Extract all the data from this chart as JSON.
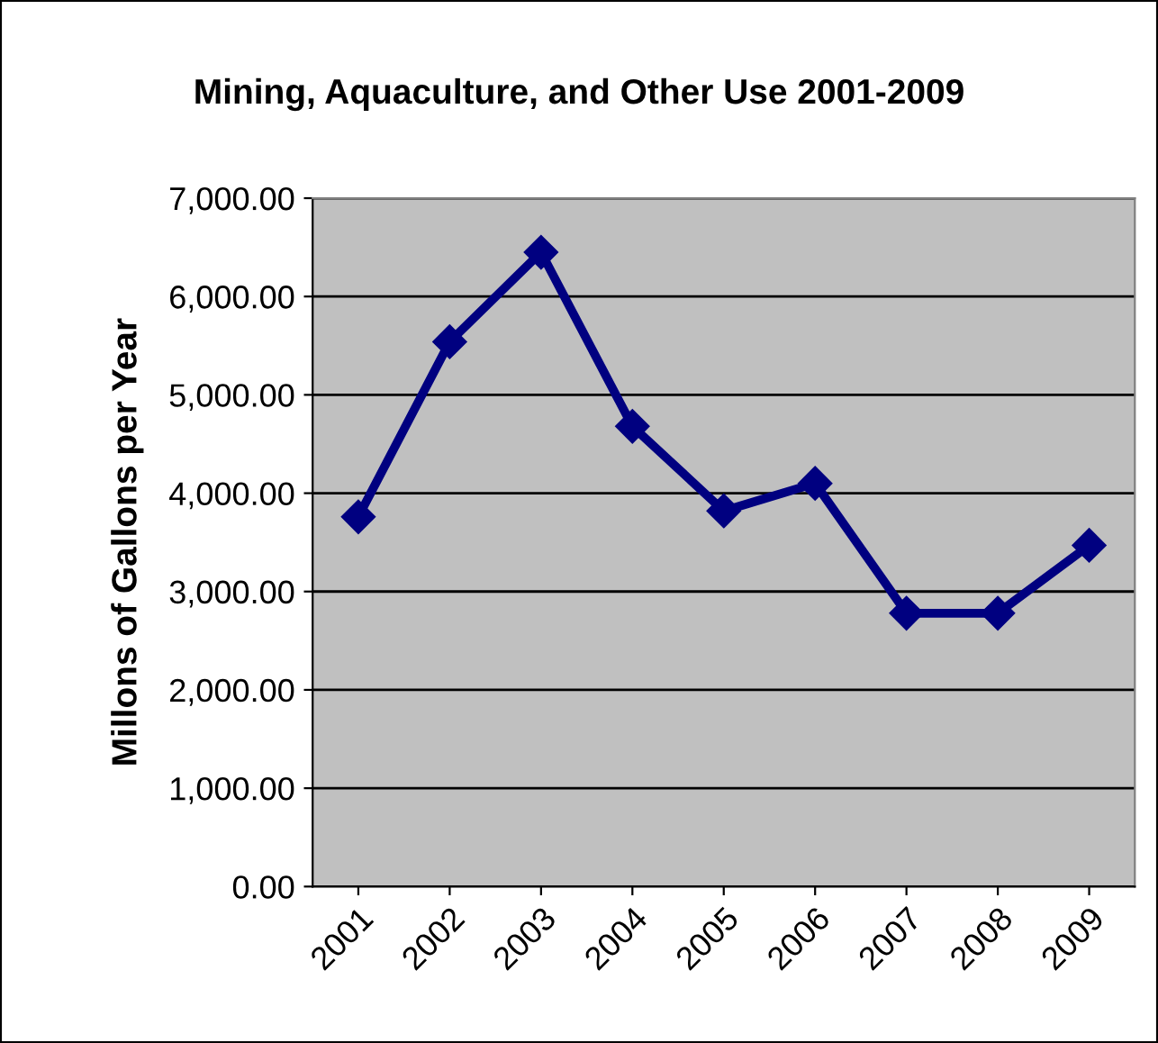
{
  "chart_data": {
    "type": "line",
    "title": "Mining, Aquaculture, and Other Use 2001-2009",
    "ylabel": "Millons of Gallons per Year",
    "categories": [
      "2001",
      "2002",
      "2003",
      "2004",
      "2005",
      "2006",
      "2007",
      "2008",
      "2009"
    ],
    "series": [
      {
        "color": "#000080",
        "values": [
          3760,
          5540,
          6450,
          4680,
          3820,
          4100,
          2780,
          2780,
          3470
        ]
      }
    ],
    "ylim": [
      0,
      7000
    ],
    "yticks": [
      {
        "value": 0,
        "label": "0.00"
      },
      {
        "value": 1000,
        "label": "1,000.00"
      },
      {
        "value": 2000,
        "label": "2,000.00"
      },
      {
        "value": 3000,
        "label": "3,000.00"
      },
      {
        "value": 4000,
        "label": "4,000.00"
      },
      {
        "value": 5000,
        "label": "5,000.00"
      },
      {
        "value": 6000,
        "label": "6,000.00"
      },
      {
        "value": 7000,
        "label": "7,000.00"
      }
    ],
    "grid": "y",
    "marker": "diamond",
    "line_style": "solid"
  }
}
